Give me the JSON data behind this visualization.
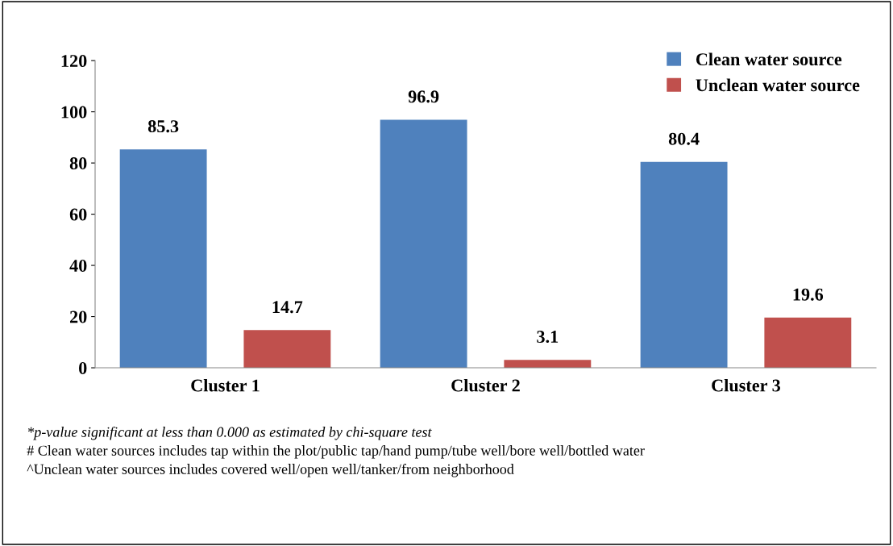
{
  "chart_data": {
    "type": "bar",
    "categories": [
      "Cluster 1",
      "Cluster 2",
      "Cluster 3"
    ],
    "series": [
      {
        "name": "Clean water source",
        "color": "#4f81bd",
        "values": [
          85.3,
          96.9,
          80.4
        ]
      },
      {
        "name": "Unclean water source",
        "color": "#c0504d",
        "values": [
          14.7,
          3.1,
          19.6
        ]
      }
    ],
    "ylim": [
      0,
      120
    ],
    "yticks": [
      0,
      20,
      40,
      60,
      80,
      100,
      120
    ],
    "data_labels": true,
    "legend": "top right",
    "grid": false,
    "annotations": [
      "*p-value significant at less than 0.000 as estimated by chi-square test",
      "# Clean water sources includes tap within the plot/public tap/hand pump/tube well/bore well/bottled water",
      "^Unclean water sources includes covered well/open well/tanker/from neighborhood"
    ]
  }
}
